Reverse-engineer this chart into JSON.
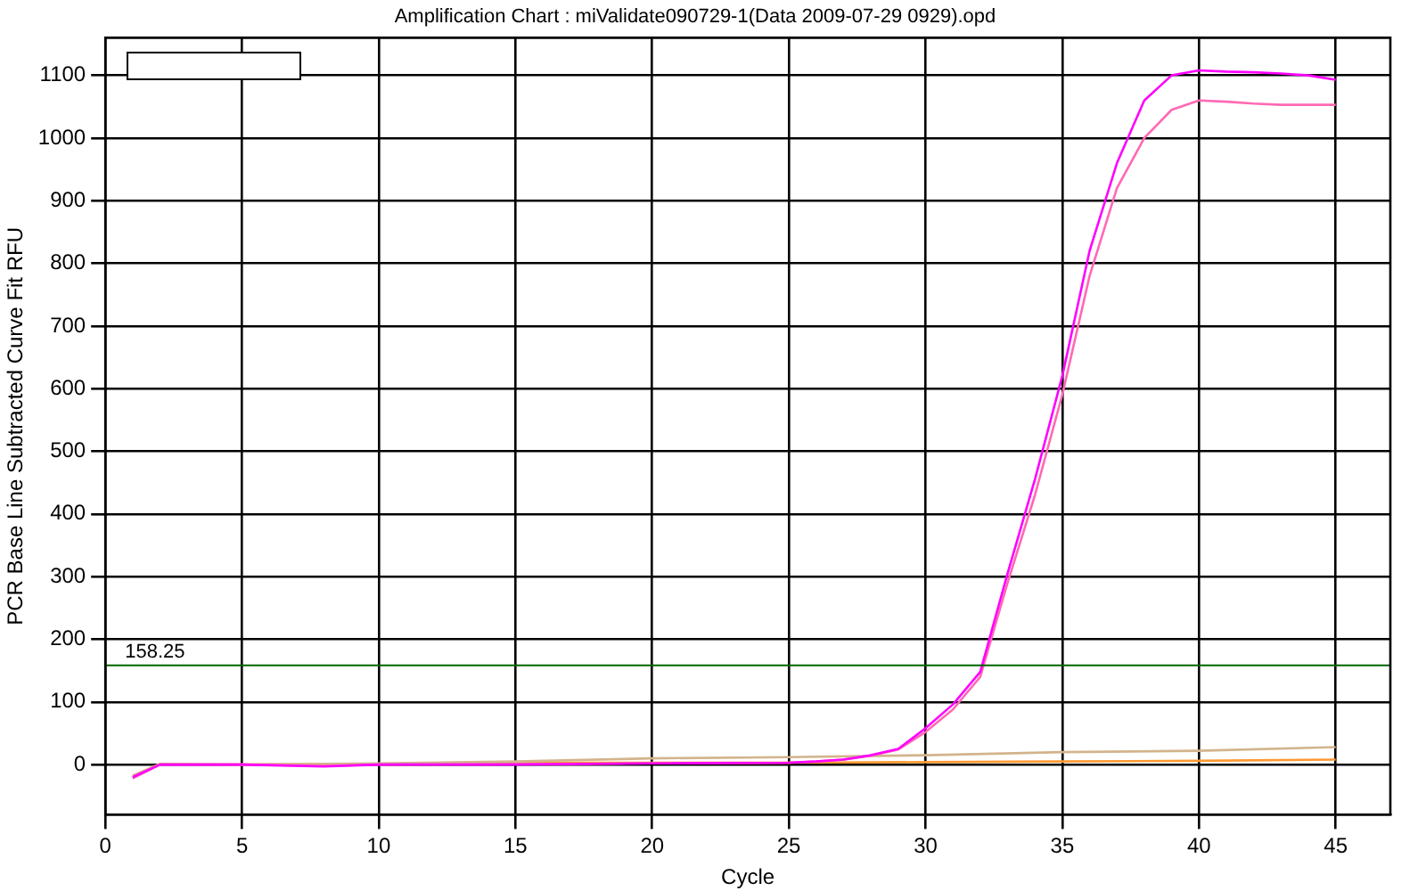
{
  "chart_data": {
    "type": "line",
    "title": "Amplification Chart : miValidate090729-1(Data 2009-07-29 0929).opd",
    "xlabel": "Cycle",
    "ylabel": "PCR Base Line Subtracted Curve Fit RFU",
    "series": [
      {
        "color": "#ff00ff",
        "x": [
          1,
          2,
          5,
          8,
          10,
          15,
          20,
          25,
          26,
          27,
          28,
          29,
          30,
          31,
          32,
          33,
          34,
          35,
          36,
          37,
          38,
          39,
          40,
          41,
          42,
          43,
          44,
          45
        ],
        "values": [
          -20,
          0,
          0,
          -3,
          0,
          0,
          2,
          3,
          5,
          8,
          15,
          25,
          58,
          96,
          148,
          305,
          455,
          620,
          820,
          960,
          1060,
          1100,
          1108,
          1106,
          1105,
          1103,
          1100,
          1093
        ]
      },
      {
        "color": "#ff69b4",
        "x": [
          1,
          2,
          5,
          8,
          10,
          15,
          20,
          25,
          26,
          27,
          28,
          29,
          30,
          31,
          32,
          33,
          34,
          35,
          36,
          37,
          38,
          39,
          40,
          41,
          42,
          43,
          44,
          45
        ],
        "values": [
          -22,
          0,
          0,
          -2,
          0,
          1,
          2,
          3,
          5,
          8,
          14,
          24,
          52,
          88,
          140,
          290,
          430,
          590,
          780,
          920,
          1000,
          1045,
          1060,
          1058,
          1055,
          1053,
          1053,
          1053
        ]
      },
      {
        "color": "#d2b48c",
        "x": [
          1,
          2,
          5,
          10,
          15,
          20,
          25,
          30,
          35,
          40,
          45
        ],
        "values": [
          -18,
          1,
          0,
          2,
          5,
          10,
          12,
          15,
          20,
          22,
          28
        ]
      },
      {
        "color": "#ff9933",
        "x": [
          1,
          2,
          5,
          10,
          15,
          20,
          25,
          30,
          35,
          40,
          45
        ],
        "values": [
          -18,
          1,
          0,
          1,
          3,
          3,
          3,
          4,
          5,
          6,
          8
        ]
      }
    ],
    "xlim": [
      0,
      47
    ],
    "xticks": [
      0,
      5,
      10,
      15,
      20,
      25,
      30,
      35,
      40,
      45
    ],
    "ylim": [
      -80,
      1160
    ],
    "yticks": [
      0,
      100,
      200,
      300,
      400,
      500,
      600,
      700,
      800,
      900,
      1000,
      1100
    ],
    "ref_lines": [
      {
        "axis": "y",
        "value": 158.25,
        "label": "158.25",
        "color": "#006400"
      }
    ],
    "grid": true,
    "legend": false,
    "marker": "none",
    "line_style": "solid"
  }
}
